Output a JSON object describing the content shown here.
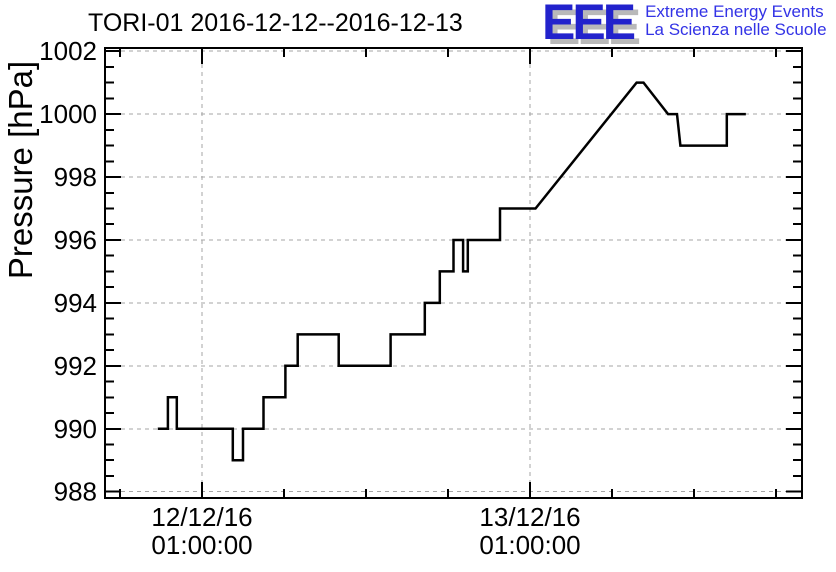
{
  "header": {
    "title": "TORI-01 2016-12-12--2016-12-13"
  },
  "logo": {
    "acronym": "EEE",
    "line1": "Extreme Energy Events",
    "line2": "La Scienza nelle Scuole",
    "acronym_color": "#2222cc",
    "shadow_color": "#b9b9b9",
    "text_color": "#3333e6"
  },
  "chart_data": {
    "type": "line",
    "title": "TORI-01 2016-12-12--2016-12-13",
    "xlabel": "",
    "ylabel": "Pressure [hPa]",
    "x_unit": "hours since 2016-12-12 00:00:00",
    "xlim": [
      -6.1,
      44.9
    ],
    "ylim": [
      987.8,
      1002.1
    ],
    "grid": true,
    "legend": "none",
    "line_color": "#000000",
    "grid_color": "#a6a6a6",
    "y_major_ticks": [
      988,
      990,
      992,
      994,
      996,
      998,
      1000,
      1002
    ],
    "y_minor_step": 0.5,
    "x_minor_ticks": [
      -5,
      7,
      13,
      19,
      31,
      37,
      43
    ],
    "x_major_ticks": [
      {
        "x": 1,
        "label_line1": "12/12/16",
        "label_line2": "01:00:00"
      },
      {
        "x": 25,
        "label_line1": "13/12/16",
        "label_line2": "01:00:00"
      }
    ],
    "series": [
      {
        "name": "pressure",
        "points": [
          [
            -2.15,
            990
          ],
          [
            -1.5,
            990
          ],
          [
            -1.5,
            991
          ],
          [
            -0.85,
            991
          ],
          [
            -0.85,
            990
          ],
          [
            3.25,
            990
          ],
          [
            3.25,
            989
          ],
          [
            4.0,
            989
          ],
          [
            4.0,
            990
          ],
          [
            5.5,
            990
          ],
          [
            5.5,
            991
          ],
          [
            7.1,
            991
          ],
          [
            7.1,
            992
          ],
          [
            8.0,
            992
          ],
          [
            8.0,
            993
          ],
          [
            11.0,
            993
          ],
          [
            11.0,
            992
          ],
          [
            14.8,
            992
          ],
          [
            14.8,
            993
          ],
          [
            17.3,
            993
          ],
          [
            17.3,
            994
          ],
          [
            18.4,
            994
          ],
          [
            18.4,
            995
          ],
          [
            19.4,
            995
          ],
          [
            19.4,
            996
          ],
          [
            20.1,
            996
          ],
          [
            20.1,
            995
          ],
          [
            20.45,
            995
          ],
          [
            20.45,
            996
          ],
          [
            22.8,
            996
          ],
          [
            22.8,
            997
          ],
          [
            25.4,
            997
          ],
          [
            32.8,
            1001
          ],
          [
            33.3,
            1001
          ],
          [
            35.1,
            1000
          ],
          [
            35.75,
            1000
          ],
          [
            36.0,
            999
          ],
          [
            39.4,
            999
          ],
          [
            39.4,
            1000
          ],
          [
            40.7,
            1000
          ]
        ]
      }
    ]
  }
}
